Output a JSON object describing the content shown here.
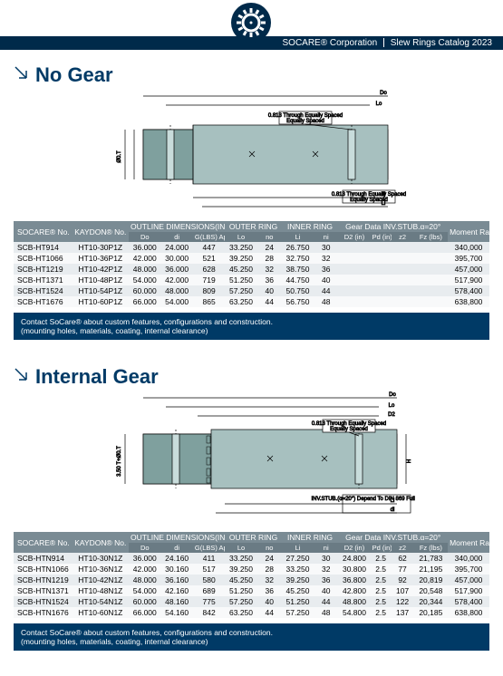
{
  "header": {
    "company": "SOCARE® Corporation",
    "doc": "Slew Rings Catalog 2023"
  },
  "colors": {
    "navy": "#002a4a",
    "heading": "#003a66",
    "th_bg": "#7a8b94"
  },
  "section1": {
    "title": "No Gear",
    "table": {
      "group_headers": [
        "SOCARE® No.",
        "KAYDON® No.",
        "OUTLINE DIMENSIONS(IN) AND WEIGHT(LBS)",
        "OUTER RING",
        "INNER RING",
        "Gear Data INV.STUB.α=20°",
        "Moment Rating Crm (ft-lbs)"
      ],
      "sub_headers": [
        "Do",
        "di",
        "G(LBS) Approx",
        "Lo",
        "no",
        "Li",
        "ni",
        "D2 (in)",
        "Pd (in)",
        "z2",
        "Fz (lbs)"
      ],
      "rows": [
        [
          "SCB-HT914",
          "HT10-30P1Z",
          "36.000",
          "24.000",
          "447",
          "33.250",
          "24",
          "26.750",
          "30",
          "",
          "",
          "",
          "",
          "340,000"
        ],
        [
          "SCB-HT1066",
          "HT10-36P1Z",
          "42.000",
          "30.000",
          "521",
          "39.250",
          "28",
          "32.750",
          "32",
          "",
          "",
          "",
          "",
          "395,700"
        ],
        [
          "SCB-HT1219",
          "HT10-42P1Z",
          "48.000",
          "36.000",
          "628",
          "45.250",
          "32",
          "38.750",
          "36",
          "",
          "",
          "",
          "",
          "457,000"
        ],
        [
          "SCB-HT1371",
          "HT10-48P1Z",
          "54.000",
          "42.000",
          "719",
          "51.250",
          "36",
          "44.750",
          "40",
          "",
          "",
          "",
          "",
          "517,900"
        ],
        [
          "SCB-HT1524",
          "HT10-54P1Z",
          "60.000",
          "48.000",
          "809",
          "57.250",
          "40",
          "50.750",
          "44",
          "",
          "",
          "",
          "",
          "578,400"
        ],
        [
          "SCB-HT1676",
          "HT10-60P1Z",
          "66.000",
          "54.000",
          "865",
          "63.250",
          "44",
          "56.750",
          "48",
          "",
          "",
          "",
          "",
          "638,800"
        ]
      ]
    }
  },
  "section2": {
    "title": "Internal Gear",
    "table": {
      "rows": [
        [
          "SCB-HTN914",
          "HT10-30N1Z",
          "36.000",
          "24.160",
          "411",
          "33.250",
          "24",
          "27.250",
          "30",
          "24.800",
          "2.5",
          "62",
          "21,783",
          "340,000"
        ],
        [
          "SCB-HTN1066",
          "HT10-36N1Z",
          "42.000",
          "30.160",
          "517",
          "39.250",
          "28",
          "33.250",
          "32",
          "30.800",
          "2.5",
          "77",
          "21,195",
          "395,700"
        ],
        [
          "SCB-HTN1219",
          "HT10-42N1Z",
          "48.000",
          "36.160",
          "580",
          "45.250",
          "32",
          "39.250",
          "36",
          "36.800",
          "2.5",
          "92",
          "20,819",
          "457,000"
        ],
        [
          "SCB-HTN1371",
          "HT10-48N1Z",
          "54.000",
          "42.160",
          "689",
          "51.250",
          "36",
          "45.250",
          "40",
          "42.800",
          "2.5",
          "107",
          "20,548",
          "517,900"
        ],
        [
          "SCB-HTN1524",
          "HT10-54N1Z",
          "60.000",
          "48.160",
          "775",
          "57.250",
          "40",
          "51.250",
          "44",
          "48.800",
          "2.5",
          "122",
          "20,344",
          "578,400"
        ],
        [
          "SCB-HTN1676",
          "HT10-60N1Z",
          "66.000",
          "54.160",
          "842",
          "63.250",
          "44",
          "57.250",
          "48",
          "54.800",
          "2.5",
          "137",
          "20,185",
          "638,800"
        ]
      ]
    }
  },
  "note": {
    "line1": "Contact SoCare® about custom features, configurations and construction.",
    "line2": "(mounting holes, materials, coating, internal clearance)"
  },
  "diagram_labels": {
    "Do": "Do",
    "Lo": "Lo",
    "di": "di",
    "D2": "D2",
    "Li": "Li",
    "holes_top": "0.813 Through Equally Spaced",
    "holes_bot": "0.813 Through Equally Spaced",
    "stub": "INV.STUB.(α=20°) Depend To DIN 869 Full Fillet Root"
  }
}
